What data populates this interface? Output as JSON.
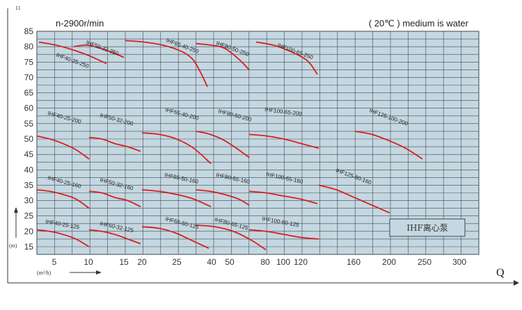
{
  "header": {
    "speed": "n-2900r/min",
    "medium": "( 20℃ ) medium is water",
    "corner_mark": "11"
  },
  "axes": {
    "q_label": "Q",
    "h_unit": "(m)",
    "q_unit": "(m³/h)"
  },
  "watermark": "IHF离心泵",
  "chart_data": {
    "type": "line",
    "title": "",
    "ylabel": "(m)",
    "xlabel": "Q",
    "ylim": [
      0,
      85
    ],
    "yticks": [
      15,
      20,
      25,
      30,
      35,
      40,
      45,
      50,
      55,
      60,
      65,
      70,
      75,
      80,
      85
    ],
    "xticks": [
      "5",
      "10",
      "15",
      "20",
      "25",
      "30",
      "40",
      "50",
      "80",
      "100",
      "120",
      "160",
      "200",
      "250",
      "300"
    ],
    "grid": true,
    "x_axis_note": "segmented Q axis; each pump group has its own local flow scale",
    "series": [
      {
        "name": "IHF40-25-250",
        "x": [
          0,
          12.5,
          25,
          37.5,
          50
        ],
        "y": [
          81.5,
          80.5,
          79,
          77,
          74.5
        ]
      },
      {
        "name": "IHF50-32-250",
        "x": [
          0,
          10,
          20,
          30,
          38
        ],
        "y": [
          80,
          80.5,
          79.5,
          78,
          76.5
        ]
      },
      {
        "name": "IHF65-40-250",
        "x": [
          0,
          25,
          50,
          75,
          90,
          100,
          110
        ],
        "y": [
          82,
          81.5,
          80.5,
          78.5,
          76,
          72,
          67
        ]
      },
      {
        "name": "IHF80-50-250",
        "x": [
          0,
          20,
          40,
          60,
          75
        ],
        "y": [
          81,
          80.5,
          79.5,
          76,
          72.5
        ]
      },
      {
        "name": "IHF100-65-250",
        "x": [
          0,
          25,
          50,
          75,
          90
        ],
        "y": [
          81.5,
          80.5,
          78.5,
          75.5,
          71
        ]
      },
      {
        "name": "IHF40-25-200",
        "x": [
          0,
          12.5,
          25,
          37.5,
          50
        ],
        "y": [
          51,
          50,
          48.5,
          46.5,
          43.5
        ]
      },
      {
        "name": "IHF50-32-200",
        "x": [
          0,
          10,
          20,
          30,
          40
        ],
        "y": [
          50.5,
          50,
          48.5,
          47.5,
          46
        ]
      },
      {
        "name": "IHF65-40-200",
        "x": [
          0,
          25,
          50,
          75,
          100
        ],
        "y": [
          52,
          51.5,
          50,
          47,
          42
        ]
      },
      {
        "name": "IHF80-50-200",
        "x": [
          0,
          20,
          40,
          60,
          75
        ],
        "y": [
          52.5,
          51.5,
          49.5,
          46.5,
          44
        ]
      },
      {
        "name": "IHF100-65-200",
        "x": [
          0,
          25,
          50,
          75,
          100
        ],
        "y": [
          51.5,
          51,
          50,
          48.5,
          47
        ]
      },
      {
        "name": "IHF125-100-200",
        "x": [
          0,
          25,
          50,
          75,
          100
        ],
        "y": [
          52.5,
          51.5,
          49.5,
          47,
          43.5
        ]
      },
      {
        "name": "IHF40-25-160",
        "x": [
          0,
          12.5,
          25,
          37.5,
          50
        ],
        "y": [
          33.5,
          33,
          32,
          30.5,
          27.5
        ]
      },
      {
        "name": "IHF50-32-160",
        "x": [
          0,
          10,
          20,
          30,
          40
        ],
        "y": [
          33,
          32.5,
          31,
          30,
          28
        ]
      },
      {
        "name": "IHF65-50-160",
        "x": [
          0,
          25,
          50,
          75,
          100
        ],
        "y": [
          33.5,
          33,
          32,
          30.5,
          28
        ]
      },
      {
        "name": "IHF80-65-160",
        "x": [
          0,
          20,
          40,
          60,
          75
        ],
        "y": [
          33.5,
          33,
          32,
          30.5,
          28.5
        ]
      },
      {
        "name": "IHF100-65-160",
        "x": [
          0,
          25,
          50,
          75,
          100
        ],
        "y": [
          33,
          32.5,
          31.5,
          30.5,
          29
        ]
      },
      {
        "name": "IHF125-80-160",
        "x": [
          0,
          25,
          50,
          75,
          100
        ],
        "y": [
          35,
          33.5,
          31,
          28.5,
          26
        ]
      },
      {
        "name": "IHF40-25-125",
        "x": [
          0,
          12.5,
          25,
          37.5,
          50
        ],
        "y": [
          20.5,
          20,
          19,
          17.5,
          15
        ]
      },
      {
        "name": "IHF50-32-125",
        "x": [
          0,
          10,
          20,
          30,
          40
        ],
        "y": [
          20.5,
          20,
          19,
          17.5,
          16
        ]
      },
      {
        "name": "IHF65-50-125",
        "x": [
          0,
          25,
          50,
          75,
          100
        ],
        "y": [
          21.5,
          21,
          19.5,
          17,
          14.5
        ]
      },
      {
        "name": "IHF80-65-125",
        "x": [
          0,
          20,
          40,
          60,
          75
        ],
        "y": [
          22,
          21.5,
          20,
          17,
          14
        ]
      },
      {
        "name": "IHF100-80-125",
        "x": [
          0,
          25,
          50,
          75,
          100
        ],
        "y": [
          20.5,
          20,
          19,
          18,
          17.5
        ]
      }
    ]
  },
  "colors": {
    "background": "#c5d7e0",
    "grid": "#3a4a55",
    "curve": "#d71f1f",
    "text": "#222222"
  }
}
